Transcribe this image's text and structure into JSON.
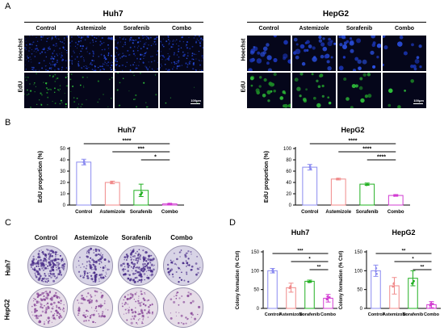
{
  "panels": {
    "A": "A",
    "B": "B",
    "C": "C",
    "D": "D"
  },
  "panelA": {
    "groups": [
      {
        "title": "Huh7",
        "columns": [
          "Control",
          "Astemizole",
          "Sorafenib",
          "Combo"
        ],
        "rows": [
          "Hoechst",
          "EdU"
        ]
      },
      {
        "title": "HepG2",
        "columns": [
          "Control",
          "Astemizole",
          "Sorafenib",
          "Combo"
        ],
        "rows": [
          "Hoechst",
          "EdU"
        ]
      }
    ],
    "scale_bar": "100μm"
  },
  "panelC": {
    "columns": [
      "Control",
      "Astemizole",
      "Sorafenib",
      "Combo"
    ],
    "rows": [
      "Huh7",
      "HepG2"
    ]
  },
  "colors": {
    "control": "#8c8cf0",
    "astemizole": "#f08a8a",
    "sorafenib": "#22b022",
    "combo": "#d23cd2"
  },
  "chart_data": [
    {
      "type": "bar",
      "title": "Huh7",
      "ylabel": "EdU proportion (%)",
      "xlabel": "",
      "categories": [
        "Control",
        "Astemizole",
        "Sorafenib",
        "Combo"
      ],
      "values": [
        38,
        20,
        13,
        1
      ],
      "errors": [
        2.5,
        1.2,
        5.5,
        0.5
      ],
      "ylim": [
        0,
        50
      ],
      "yticks": [
        0,
        10,
        20,
        30,
        40,
        50
      ],
      "significance": [
        "****",
        "***",
        "*"
      ]
    },
    {
      "type": "bar",
      "title": "HepG2",
      "ylabel": "EdU proportion (%)",
      "xlabel": "",
      "categories": [
        "Control",
        "Astemizole",
        "Sorafenib",
        "Combo"
      ],
      "values": [
        67,
        46,
        37,
        17
      ],
      "errors": [
        5,
        1.5,
        2,
        1.5
      ],
      "ylim": [
        0,
        100
      ],
      "yticks": [
        0,
        20,
        40,
        60,
        80,
        100
      ],
      "significance": [
        "****",
        "****",
        "****"
      ]
    },
    {
      "type": "bar",
      "title": "Huh7",
      "ylabel": "Colony formation (% Ctrl)",
      "xlabel": "",
      "categories": [
        "Control",
        "Astemizole",
        "Sorafenib",
        "Combo"
      ],
      "values": [
        100,
        55,
        72,
        27
      ],
      "errors": [
        6,
        12,
        3,
        10
      ],
      "ylim": [
        0,
        150
      ],
      "yticks": [
        0,
        50,
        100,
        150
      ],
      "significance": [
        "***",
        "*",
        "**"
      ]
    },
    {
      "type": "bar",
      "title": "HepG2",
      "ylabel": "Colony formation (% Ctrl)",
      "xlabel": "",
      "categories": [
        "Control",
        "Astemizole",
        "Sorafenib",
        "Combo"
      ],
      "values": [
        100,
        60,
        80,
        10
      ],
      "errors": [
        15,
        22,
        20,
        8
      ],
      "ylim": [
        0,
        150
      ],
      "yticks": [
        0,
        50,
        100,
        150
      ],
      "significance": [
        "**",
        "*",
        "**"
      ]
    }
  ]
}
